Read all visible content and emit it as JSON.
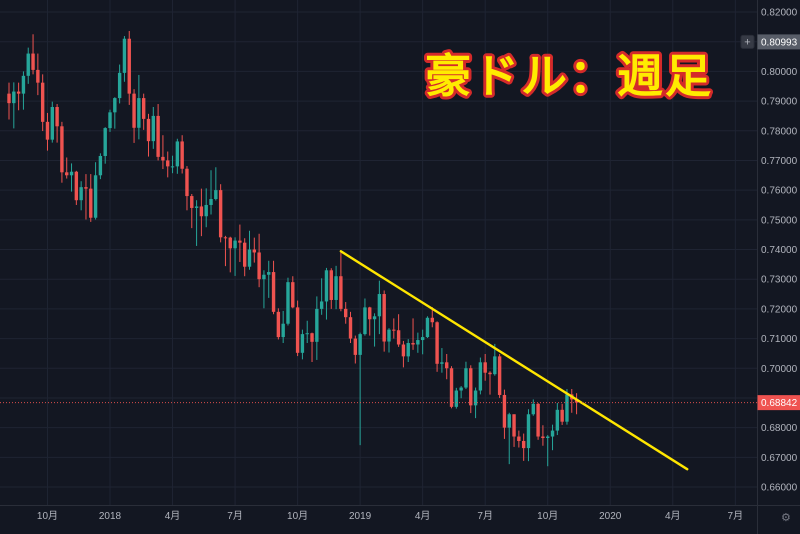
{
  "colors": {
    "background": "#131722",
    "grid": "#1f2433",
    "axis_border": "#2a2e39",
    "axis_text": "#b2b5be",
    "up": "#26a69a",
    "down": "#ef5350",
    "trendline": "#ffe600",
    "title_fill": "#ffeb00",
    "title_stroke": "#d42a2a",
    "badge_gray": "#585d68",
    "badge_text": "#ffffff",
    "plus_button_bg": "#363a45",
    "gear": "#787b86"
  },
  "icons": {
    "gear": "⚙",
    "plus": "+"
  },
  "chart_data": {
    "type": "candlestick",
    "title": "豪ドル：週足",
    "symbol_label": "豪ドル：週足",
    "timeframe": "週足",
    "ylim": [
      0.66,
      0.82
    ],
    "grid": "on",
    "price_axis": {
      "min": 0.66,
      "max": 0.82,
      "step": 0.01,
      "visible_labels": [
        "0.82000",
        "0.80000",
        "0.79000",
        "0.78000",
        "0.77000",
        "0.76000",
        "0.75000",
        "0.74000",
        "0.73000",
        "0.72000",
        "0.71000",
        "0.70000",
        "0.68000",
        "0.67000",
        "0.66000"
      ]
    },
    "time_axis": {
      "labels": [
        {
          "label": "10月",
          "index": 8
        },
        {
          "label": "2018",
          "index": 21
        },
        {
          "label": "4月",
          "index": 34
        },
        {
          "label": "7月",
          "index": 47
        },
        {
          "label": "10月",
          "index": 60
        },
        {
          "label": "2019",
          "index": 73
        },
        {
          "label": "4月",
          "index": 86
        },
        {
          "label": "7月",
          "index": 99
        },
        {
          "label": "10月",
          "index": 112
        },
        {
          "label": "2020",
          "index": 125
        },
        {
          "label": "4月",
          "index": 138
        },
        {
          "label": "7月",
          "index": 151
        }
      ]
    },
    "last_price": 0.68842,
    "last_price_label": "0.68842",
    "alert_badge": {
      "price": 0.80993,
      "label": "0.80993"
    },
    "trendline": {
      "points": [
        {
          "index": 69,
          "price": 0.7394
        },
        {
          "index": 141,
          "price": 0.666
        }
      ]
    },
    "candles": [
      [
        0.7925,
        0.7962,
        0.7838,
        0.7893
      ],
      [
        0.7893,
        0.7963,
        0.7808,
        0.7932
      ],
      [
        0.7932,
        0.7962,
        0.7869,
        0.7925
      ],
      [
        0.7925,
        0.8,
        0.7871,
        0.7985
      ],
      [
        0.7985,
        0.808,
        0.7958,
        0.806
      ],
      [
        0.806,
        0.8125,
        0.799,
        0.8005
      ],
      [
        0.8005,
        0.806,
        0.792,
        0.7962
      ],
      [
        0.7962,
        0.799,
        0.7799,
        0.783
      ],
      [
        0.783,
        0.786,
        0.7733,
        0.777
      ],
      [
        0.777,
        0.7898,
        0.776,
        0.788
      ],
      [
        0.788,
        0.789,
        0.776,
        0.7815
      ],
      [
        0.7815,
        0.783,
        0.7625,
        0.766
      ],
      [
        0.766,
        0.771,
        0.7639,
        0.765
      ],
      [
        0.765,
        0.769,
        0.7595,
        0.7662
      ],
      [
        0.7662,
        0.7665,
        0.755,
        0.7566
      ],
      [
        0.7566,
        0.763,
        0.7532,
        0.761
      ],
      [
        0.761,
        0.7654,
        0.7501,
        0.7605
      ],
      [
        0.7605,
        0.7654,
        0.7493,
        0.7507
      ],
      [
        0.7507,
        0.7694,
        0.7501,
        0.765
      ],
      [
        0.765,
        0.7724,
        0.7637,
        0.7715
      ],
      [
        0.7715,
        0.7812,
        0.7689,
        0.7809
      ],
      [
        0.7809,
        0.7871,
        0.7796,
        0.7862
      ],
      [
        0.7862,
        0.7913,
        0.7807,
        0.791
      ],
      [
        0.791,
        0.8023,
        0.7892,
        0.7995
      ],
      [
        0.7995,
        0.8119,
        0.7965,
        0.811
      ],
      [
        0.811,
        0.8136,
        0.7887,
        0.7925
      ],
      [
        0.7925,
        0.794,
        0.7759,
        0.781
      ],
      [
        0.781,
        0.7988,
        0.7771,
        0.791
      ],
      [
        0.791,
        0.7925,
        0.7803,
        0.784
      ],
      [
        0.784,
        0.7857,
        0.7713,
        0.7765
      ],
      [
        0.7765,
        0.788,
        0.7739,
        0.785
      ],
      [
        0.785,
        0.789,
        0.77,
        0.7712
      ],
      [
        0.7712,
        0.7785,
        0.7671,
        0.77
      ],
      [
        0.77,
        0.773,
        0.7643,
        0.768
      ],
      [
        0.768,
        0.7716,
        0.7657,
        0.768
      ],
      [
        0.768,
        0.7773,
        0.7655,
        0.7764
      ],
      [
        0.7764,
        0.7785,
        0.7656,
        0.7672
      ],
      [
        0.7672,
        0.7681,
        0.7532,
        0.758
      ],
      [
        0.758,
        0.7587,
        0.7472,
        0.754
      ],
      [
        0.754,
        0.7566,
        0.7412,
        0.7545
      ],
      [
        0.7545,
        0.7605,
        0.7445,
        0.7512
      ],
      [
        0.7512,
        0.7606,
        0.7475,
        0.755
      ],
      [
        0.755,
        0.7667,
        0.7518,
        0.757
      ],
      [
        0.757,
        0.7677,
        0.7565,
        0.76
      ],
      [
        0.76,
        0.762,
        0.7424,
        0.7441
      ],
      [
        0.7441,
        0.7446,
        0.7344,
        0.744
      ],
      [
        0.744,
        0.7443,
        0.7323,
        0.7404
      ],
      [
        0.7404,
        0.7441,
        0.7311,
        0.743
      ],
      [
        0.743,
        0.7484,
        0.7358,
        0.7423
      ],
      [
        0.7423,
        0.7438,
        0.731,
        0.7342
      ],
      [
        0.7342,
        0.7463,
        0.7332,
        0.74
      ],
      [
        0.74,
        0.744,
        0.7356,
        0.739
      ],
      [
        0.739,
        0.7453,
        0.7273,
        0.73
      ],
      [
        0.73,
        0.733,
        0.7202,
        0.7315
      ],
      [
        0.7315,
        0.7362,
        0.7237,
        0.7324
      ],
      [
        0.7324,
        0.7362,
        0.7182,
        0.719
      ],
      [
        0.719,
        0.7202,
        0.7097,
        0.7105
      ],
      [
        0.7105,
        0.7193,
        0.7085,
        0.715
      ],
      [
        0.715,
        0.7305,
        0.7144,
        0.729
      ],
      [
        0.729,
        0.731,
        0.7202,
        0.7205
      ],
      [
        0.7205,
        0.7228,
        0.7041,
        0.7052
      ],
      [
        0.7052,
        0.713,
        0.703,
        0.7115
      ],
      [
        0.7115,
        0.716,
        0.7085,
        0.7118
      ],
      [
        0.7118,
        0.712,
        0.7021,
        0.7089
      ],
      [
        0.7089,
        0.7242,
        0.7028,
        0.72
      ],
      [
        0.72,
        0.7303,
        0.718,
        0.7225
      ],
      [
        0.7225,
        0.7338,
        0.7164,
        0.733
      ],
      [
        0.733,
        0.7337,
        0.72,
        0.723
      ],
      [
        0.723,
        0.7345,
        0.7199,
        0.731
      ],
      [
        0.731,
        0.7394,
        0.7192,
        0.72
      ],
      [
        0.72,
        0.7223,
        0.715,
        0.7172
      ],
      [
        0.7172,
        0.719,
        0.7085,
        0.71
      ],
      [
        0.71,
        0.711,
        0.7016,
        0.7045
      ],
      [
        0.7045,
        0.712,
        0.6741,
        0.7115
      ],
      [
        0.7115,
        0.7235,
        0.711,
        0.7205
      ],
      [
        0.7205,
        0.7207,
        0.711,
        0.7165
      ],
      [
        0.7165,
        0.7185,
        0.7073,
        0.7175
      ],
      [
        0.7175,
        0.7295,
        0.7115,
        0.725
      ],
      [
        0.725,
        0.7262,
        0.7056,
        0.709
      ],
      [
        0.709,
        0.7135,
        0.7053,
        0.713
      ],
      [
        0.713,
        0.7168,
        0.71,
        0.7128
      ],
      [
        0.7128,
        0.7182,
        0.7072,
        0.708
      ],
      [
        0.708,
        0.7092,
        0.7003,
        0.704
      ],
      [
        0.704,
        0.7098,
        0.7021,
        0.7085
      ],
      [
        0.7085,
        0.7168,
        0.7062,
        0.708
      ],
      [
        0.708,
        0.712,
        0.7052,
        0.7095
      ],
      [
        0.7095,
        0.713,
        0.7047,
        0.7105
      ],
      [
        0.7105,
        0.7175,
        0.7102,
        0.717
      ],
      [
        0.717,
        0.7206,
        0.7138,
        0.7155
      ],
      [
        0.7155,
        0.7158,
        0.6988,
        0.7015
      ],
      [
        0.7015,
        0.7068,
        0.6985,
        0.702
      ],
      [
        0.702,
        0.7048,
        0.6963,
        0.7
      ],
      [
        0.7,
        0.7007,
        0.6865,
        0.687
      ],
      [
        0.687,
        0.6934,
        0.6864,
        0.6925
      ],
      [
        0.6925,
        0.694,
        0.6899,
        0.6935
      ],
      [
        0.6935,
        0.7022,
        0.693,
        0.7
      ],
      [
        0.7,
        0.701,
        0.6849,
        0.6875
      ],
      [
        0.6875,
        0.6935,
        0.6832,
        0.6925
      ],
      [
        0.6925,
        0.7036,
        0.6912,
        0.702
      ],
      [
        0.702,
        0.7048,
        0.6958,
        0.6985
      ],
      [
        0.6985,
        0.699,
        0.6911,
        0.698
      ],
      [
        0.698,
        0.7082,
        0.6975,
        0.704
      ],
      [
        0.704,
        0.7048,
        0.69,
        0.691
      ],
      [
        0.691,
        0.6928,
        0.6762,
        0.68
      ],
      [
        0.68,
        0.685,
        0.6677,
        0.6845
      ],
      [
        0.6845,
        0.6845,
        0.6735,
        0.677
      ],
      [
        0.677,
        0.679,
        0.6733,
        0.6755
      ],
      [
        0.6755,
        0.678,
        0.6688,
        0.6731
      ],
      [
        0.6731,
        0.6862,
        0.6687,
        0.6845
      ],
      [
        0.6845,
        0.6895,
        0.684,
        0.688
      ],
      [
        0.688,
        0.6883,
        0.6759,
        0.677
      ],
      [
        0.677,
        0.6808,
        0.6739,
        0.6765
      ],
      [
        0.6765,
        0.6775,
        0.667,
        0.677
      ],
      [
        0.677,
        0.681,
        0.6724,
        0.679
      ],
      [
        0.679,
        0.6883,
        0.6775,
        0.686
      ],
      [
        0.686,
        0.688,
        0.6809,
        0.682
      ],
      [
        0.682,
        0.693,
        0.681,
        0.6912
      ],
      [
        0.6912,
        0.693,
        0.685,
        0.6895
      ],
      [
        0.6895,
        0.6916,
        0.6845,
        0.68842
      ]
    ]
  }
}
